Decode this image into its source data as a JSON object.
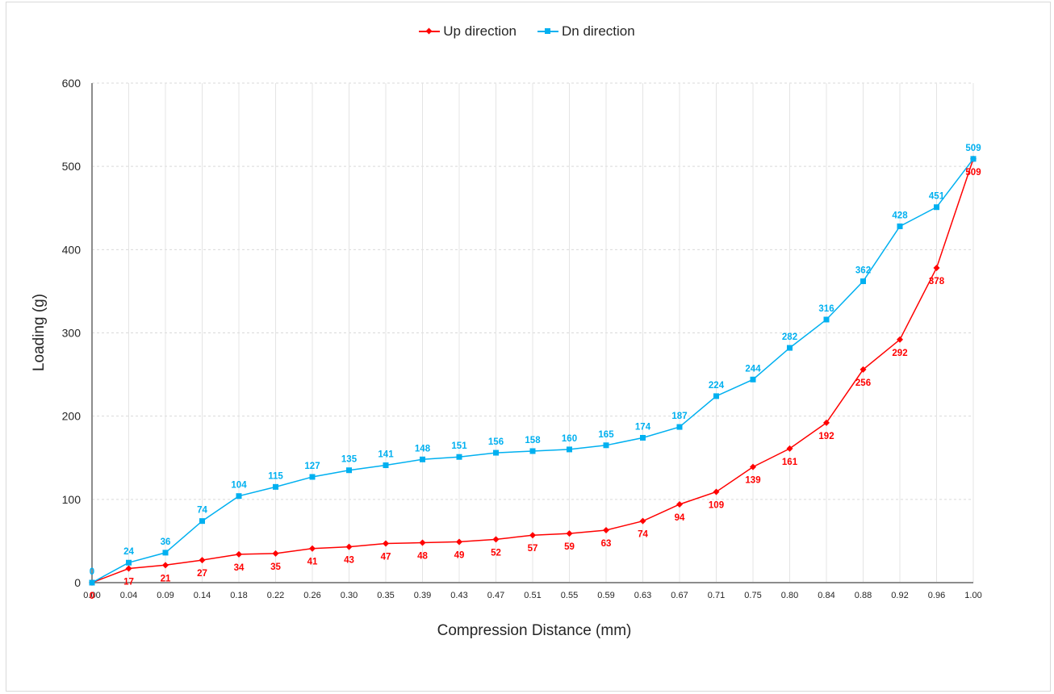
{
  "chart_data": {
    "type": "line",
    "title": "",
    "xlabel": "Compression Distance (mm)",
    "ylabel": "Loading (g)",
    "ylim": [
      0,
      600
    ],
    "yticks": [
      "0",
      "100",
      "200",
      "300",
      "400",
      "500",
      "600"
    ],
    "grid": true,
    "legend_position": "top",
    "categories": [
      "0.00",
      "0.04",
      "0.09",
      "0.14",
      "0.18",
      "0.22",
      "0.26",
      "0.30",
      "0.35",
      "0.39",
      "0.43",
      "0.47",
      "0.51",
      "0.55",
      "0.59",
      "0.63",
      "0.67",
      "0.71",
      "0.75",
      "0.80",
      "0.84",
      "0.88",
      "0.92",
      "0.96",
      "1.00"
    ],
    "series": [
      {
        "name": "Up direction",
        "color": "#ff0000",
        "marker": "diamond",
        "label_position": "below",
        "values": [
          0,
          17,
          21,
          27,
          34,
          35,
          41,
          43,
          47,
          48,
          49,
          52,
          57,
          59,
          63,
          74,
          94,
          109,
          139,
          161,
          192,
          256,
          292,
          378,
          509
        ]
      },
      {
        "name": "Dn direction",
        "color": "#00b0f0",
        "marker": "square",
        "label_position": "above",
        "values": [
          0,
          24,
          36,
          74,
          104,
          115,
          127,
          135,
          141,
          148,
          151,
          156,
          158,
          160,
          165,
          174,
          187,
          224,
          244,
          282,
          316,
          362,
          428,
          451,
          509
        ]
      }
    ]
  }
}
